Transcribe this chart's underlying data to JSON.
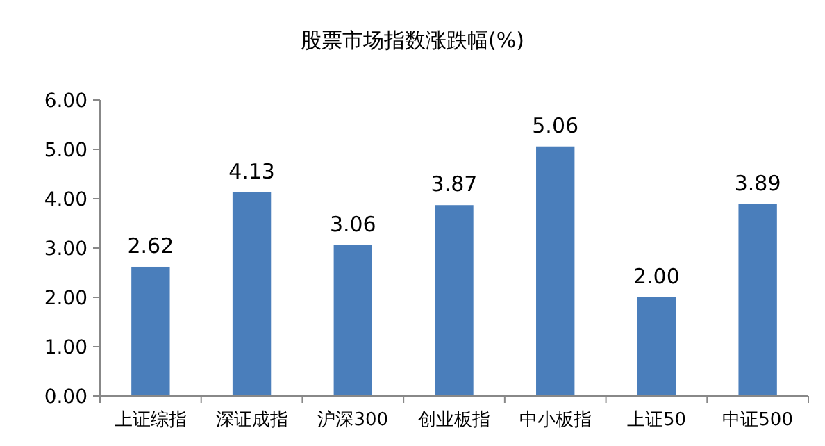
{
  "chart_data": {
    "type": "bar",
    "title": "股票市场指数涨跌幅(%)",
    "categories": [
      "上证综指",
      "深证成指",
      "沪深300",
      "创业板指",
      "中小板指",
      "上证50",
      "中证500"
    ],
    "values": [
      2.62,
      4.13,
      3.06,
      3.87,
      5.06,
      2.0,
      3.89
    ],
    "value_labels": [
      "2.62",
      "4.13",
      "3.06",
      "3.87",
      "5.06",
      "2.00",
      "3.89"
    ],
    "color": "#4a7ebb",
    "ylim": [
      0,
      6
    ],
    "yticks": [
      {
        "value": 0,
        "label": "0.00"
      },
      {
        "value": 1,
        "label": "1.00"
      },
      {
        "value": 2,
        "label": "2.00"
      },
      {
        "value": 3,
        "label": "3.00"
      },
      {
        "value": 4,
        "label": "4.00"
      },
      {
        "value": 5,
        "label": "5.00"
      },
      {
        "value": 6,
        "label": "6.00"
      }
    ],
    "grid": false
  }
}
